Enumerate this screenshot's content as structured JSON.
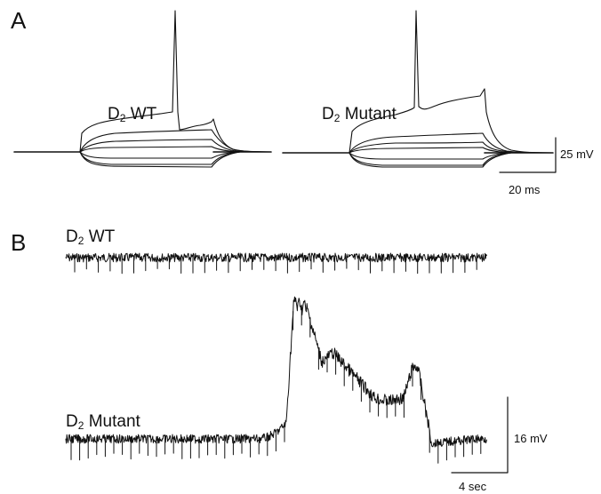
{
  "figure": {
    "panel_a": {
      "letter": "A",
      "left_trace": {
        "label_main": "D",
        "label_sub": "2",
        "label_rest": " WT"
      },
      "right_trace": {
        "label_main": "D",
        "label_sub": "2",
        "label_rest": " Mutant"
      },
      "scale_bar": {
        "voltage": "25 mV",
        "time": "20 ms"
      }
    },
    "panel_b": {
      "letter": "B",
      "top_trace": {
        "label_main": "D",
        "label_sub": "2",
        "label_rest": " WT"
      },
      "bottom_trace": {
        "label_main": "D",
        "label_sub": "2",
        "label_rest": " Mutant"
      },
      "scale_bar": {
        "voltage": "16 mV",
        "time": "4 sec"
      }
    }
  },
  "colors": {
    "trace": "#111111",
    "background": "#ffffff"
  }
}
